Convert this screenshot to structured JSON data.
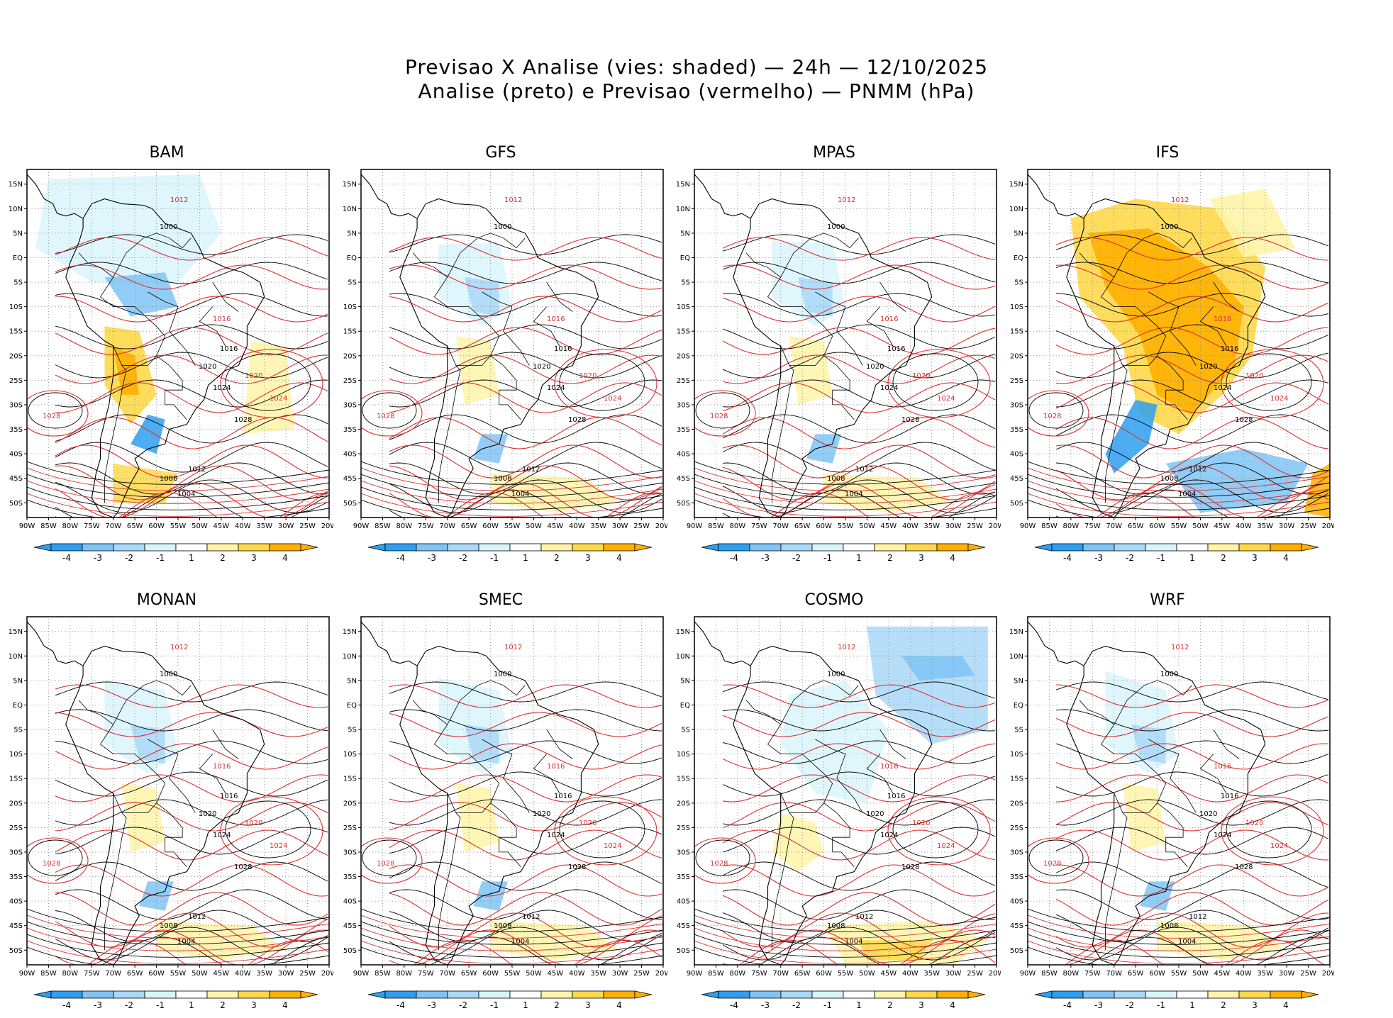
{
  "header": {
    "line1": "Previsao X Analise (vies: shaded) — 24h — 12/10/2025",
    "line2": "Analise (preto) e Previsao (vermelho) — PNMM (hPa)"
  },
  "axes": {
    "lon_labels": [
      "90W",
      "85W",
      "80W",
      "75W",
      "70W",
      "65W",
      "60W",
      "55W",
      "50W",
      "45W",
      "40W",
      "35W",
      "30W",
      "25W",
      "20W"
    ],
    "lat_labels": [
      "15N",
      "10N",
      "5N",
      "EQ",
      "5S",
      "10S",
      "15S",
      "20S",
      "25S",
      "30S",
      "35S",
      "40S",
      "45S",
      "50S"
    ]
  },
  "colorbar": {
    "labels": [
      "-4",
      "-3",
      "-2",
      "-1",
      "1",
      "2",
      "3",
      "4"
    ],
    "colors": [
      "#2e9ff0",
      "#7fc4f6",
      "#a9d8f8",
      "#d8f4fb",
      "#ffffff",
      "#fff4a8",
      "#ffd84a",
      "#ffb000"
    ]
  },
  "colors": {
    "analysis_line": "#000000",
    "forecast_line": "#d93030",
    "land_line": "#000000"
  },
  "models": [
    {
      "name": "BAM",
      "bias": "mixed",
      "analysis_isobars": [
        "1028",
        "1024",
        "1020",
        "1016",
        "1012",
        "1008",
        "1004",
        "1000"
      ],
      "forecast_isobars": [
        "1012",
        "1016",
        "1020",
        "1024",
        "1028"
      ]
    },
    {
      "name": "GFS",
      "bias": "neutral",
      "analysis_isobars": [
        "1028",
        "1024",
        "1020",
        "1016",
        "1012",
        "1008",
        "1004",
        "1000"
      ],
      "forecast_isobars": [
        "1012",
        "1016",
        "1020",
        "1024",
        "1028"
      ]
    },
    {
      "name": "MPAS",
      "bias": "neutral",
      "analysis_isobars": [
        "1028",
        "1024",
        "1020",
        "1016",
        "1012",
        "1008",
        "1004",
        "1000"
      ],
      "forecast_isobars": [
        "1012",
        "1016",
        "1020",
        "1024",
        "1028"
      ]
    },
    {
      "name": "IFS",
      "bias": "warm",
      "analysis_isobars": [
        "1028",
        "1024",
        "1020",
        "1016",
        "1012",
        "1008",
        "1004",
        "1000"
      ],
      "forecast_isobars": [
        "1012",
        "1016",
        "1020",
        "1024",
        "1028"
      ]
    },
    {
      "name": "MONAN",
      "bias": "neutral",
      "analysis_isobars": [
        "1028",
        "1024",
        "1020",
        "1016",
        "1012",
        "1008",
        "1004",
        "1000"
      ],
      "forecast_isobars": [
        "1012",
        "1016",
        "1020",
        "1024",
        "1028"
      ]
    },
    {
      "name": "SMEC",
      "bias": "neutral",
      "analysis_isobars": [
        "1028",
        "1024",
        "1020",
        "1016",
        "1012",
        "1008",
        "1004",
        "1000"
      ],
      "forecast_isobars": [
        "1012",
        "1016",
        "1020",
        "1024",
        "1028"
      ]
    },
    {
      "name": "COSMO",
      "bias": "cool",
      "analysis_isobars": [
        "1028",
        "1024",
        "1020",
        "1016",
        "1012",
        "1008",
        "1004",
        "1000"
      ],
      "forecast_isobars": [
        "1012",
        "1016",
        "1020",
        "1024",
        "1028"
      ]
    },
    {
      "name": "WRF",
      "bias": "neutral",
      "analysis_isobars": [
        "1028",
        "1024",
        "1020",
        "1016",
        "1012",
        "1008",
        "1004",
        "1000"
      ],
      "forecast_isobars": [
        "1012",
        "1016",
        "1020",
        "1024",
        "1028"
      ]
    }
  ]
}
